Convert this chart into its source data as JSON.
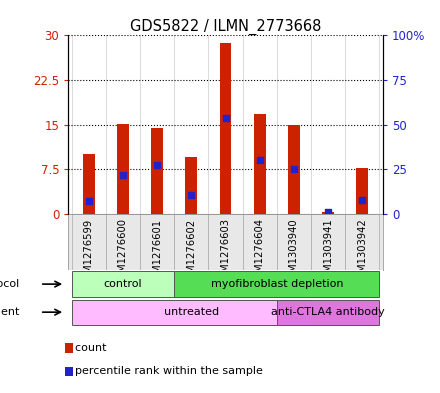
{
  "title": "GDS5822 / ILMN_2773668",
  "samples": [
    "GSM1276599",
    "GSM1276600",
    "GSM1276601",
    "GSM1276602",
    "GSM1276603",
    "GSM1276604",
    "GSM1303940",
    "GSM1303941",
    "GSM1303942"
  ],
  "counts": [
    10.0,
    15.1,
    14.5,
    9.5,
    28.7,
    16.8,
    15.0,
    0.3,
    7.8
  ],
  "percentiles": [
    7.5,
    22.0,
    27.5,
    10.5,
    53.5,
    30.0,
    25.0,
    1.0,
    8.0
  ],
  "bar_color": "#cc2200",
  "dot_color": "#2222cc",
  "ylim_left": [
    0,
    30
  ],
  "ylim_right": [
    0,
    100
  ],
  "yticks_left": [
    0,
    7.5,
    15,
    22.5,
    30
  ],
  "ytick_labels_left": [
    "0",
    "7.5",
    "15",
    "22.5",
    "30"
  ],
  "yticks_right": [
    0,
    25,
    50,
    75,
    100
  ],
  "ytick_labels_right": [
    "0",
    "25",
    "50",
    "75",
    "100%"
  ],
  "bar_width": 0.35,
  "protocol_groups": [
    {
      "label": "control",
      "start": 0,
      "end": 2,
      "color": "#bbffbb"
    },
    {
      "label": "myofibroblast depletion",
      "start": 3,
      "end": 8,
      "color": "#55dd55"
    }
  ],
  "agent_groups": [
    {
      "label": "untreated",
      "start": 0,
      "end": 6,
      "color": "#ffbbff"
    },
    {
      "label": "anti-CTLA4 antibody",
      "start": 6,
      "end": 8,
      "color": "#dd77dd"
    }
  ],
  "grid_color": "black",
  "grid_style": "dotted",
  "bg_color": "#e8e8e8",
  "left_tick_color": "#cc2200",
  "right_tick_color": "#2222cc",
  "figure_width": 4.4,
  "figure_height": 3.93
}
